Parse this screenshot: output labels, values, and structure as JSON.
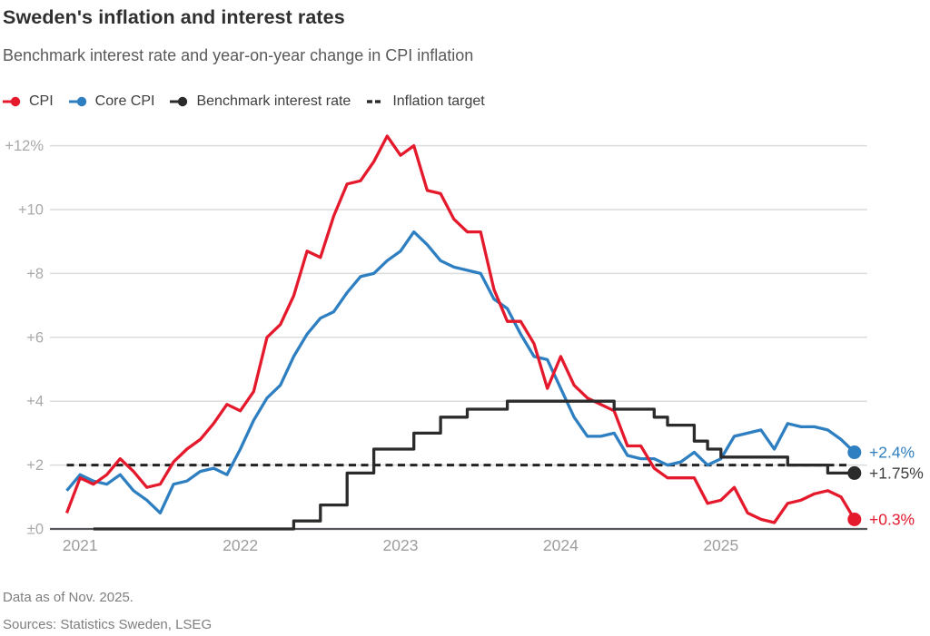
{
  "header": {
    "title": "Sweden's inflation and interest rates",
    "subtitle": "Benchmark interest rate and year-on-year change in CPI inflation"
  },
  "legend": {
    "items": [
      {
        "label": "CPI",
        "marker": "line-dot",
        "color": "#e4192c"
      },
      {
        "label": "Core CPI",
        "marker": "line-dot",
        "color": "#2e7fc1"
      },
      {
        "label": "Benchmark interest rate",
        "marker": "line-dot",
        "color": "#2b2b2b"
      },
      {
        "label": "Inflation target",
        "marker": "dashes",
        "color": "#2b2b2b"
      }
    ]
  },
  "footer": {
    "note": "Data as of Nov. 2025.",
    "sources": "Sources: Statistics Sweden, LSEG"
  },
  "chart_data": {
    "type": "line",
    "title": "Sweden's inflation and interest rates",
    "subtitle": "Benchmark interest rate and year-on-year change in CPI inflation",
    "unit": "percent year-on-year",
    "x_start": "Dec 2020",
    "x_end": "Nov 2025",
    "months_per_point": 1,
    "x_tick_labels": [
      "2021",
      "2022",
      "2023",
      "2024",
      "2025"
    ],
    "x_tick_month_indices": [
      1,
      13,
      25,
      37,
      49
    ],
    "ylim": [
      0,
      12.5
    ],
    "grid": true,
    "y_ticks": [
      {
        "value": 12,
        "label": "+12%"
      },
      {
        "value": 10,
        "label": "+10"
      },
      {
        "value": 8,
        "label": "+8"
      },
      {
        "value": 6,
        "label": "+6"
      },
      {
        "value": 4,
        "label": "+4"
      },
      {
        "value": 2,
        "label": "+2"
      },
      {
        "value": 0,
        "label": "±0"
      }
    ],
    "target_line": {
      "name": "Inflation target",
      "value": 2,
      "color": "#222222",
      "style": "dashed"
    },
    "series": [
      {
        "name": "Core CPI",
        "color": "#2e7fc1",
        "style": "line",
        "end_label": "+2.4%",
        "end_value": 2.4,
        "values": [
          1.2,
          1.7,
          1.5,
          1.4,
          1.7,
          1.2,
          0.9,
          0.5,
          1.4,
          1.5,
          1.8,
          1.9,
          1.7,
          2.5,
          3.4,
          4.1,
          4.5,
          5.4,
          6.1,
          6.6,
          6.8,
          7.4,
          7.9,
          8.0,
          8.4,
          8.7,
          9.3,
          8.9,
          8.4,
          8.2,
          8.1,
          8.0,
          7.2,
          6.9,
          6.1,
          5.4,
          5.3,
          4.4,
          3.5,
          2.9,
          2.9,
          3.0,
          2.3,
          2.2,
          2.2,
          2.0,
          2.1,
          2.4,
          2.0,
          2.2,
          2.9,
          3.0,
          3.1,
          2.5,
          3.3,
          3.2,
          3.2,
          3.1,
          2.8,
          2.4
        ]
      },
      {
        "name": "CPI",
        "color": "#e4192c",
        "style": "line",
        "end_label": "+0.3%",
        "end_value": 0.3,
        "values": [
          0.5,
          1.6,
          1.4,
          1.7,
          2.2,
          1.8,
          1.3,
          1.4,
          2.1,
          2.5,
          2.8,
          3.3,
          3.9,
          3.7,
          4.3,
          6.0,
          6.4,
          7.3,
          8.7,
          8.5,
          9.8,
          10.8,
          10.9,
          11.5,
          12.3,
          11.7,
          12.0,
          10.6,
          10.5,
          9.7,
          9.3,
          9.3,
          7.5,
          6.5,
          6.5,
          5.8,
          4.4,
          5.4,
          4.5,
          4.1,
          3.9,
          3.7,
          2.6,
          2.6,
          1.9,
          1.6,
          1.6,
          1.6,
          0.8,
          0.9,
          1.3,
          0.5,
          0.3,
          0.2,
          0.8,
          0.9,
          1.1,
          1.2,
          1.0,
          0.3
        ]
      },
      {
        "name": "Benchmark interest rate",
        "color": "#2b2b2b",
        "style": "step",
        "end_label": "+1.75%",
        "end_value": 1.75,
        "values": [
          null,
          null,
          0,
          0,
          0,
          0,
          0,
          0,
          0,
          0,
          0,
          0,
          0,
          0,
          0,
          0,
          0,
          0.25,
          0.25,
          0.75,
          0.75,
          1.75,
          1.75,
          2.5,
          2.5,
          2.5,
          3.0,
          3.0,
          3.5,
          3.5,
          3.75,
          3.75,
          3.75,
          4.0,
          4.0,
          4.0,
          4.0,
          4.0,
          4.0,
          4.0,
          4.0,
          3.75,
          3.75,
          3.75,
          3.5,
          3.25,
          3.25,
          2.75,
          2.5,
          2.25,
          2.25,
          2.25,
          2.25,
          2.25,
          2.0,
          2.0,
          2.0,
          1.75,
          1.75,
          1.75
        ]
      }
    ],
    "end_label_colors": {
      "CPI": "#e4192c",
      "Core CPI": "#2e7fc1",
      "Benchmark interest rate": "#3d3d3d"
    }
  }
}
